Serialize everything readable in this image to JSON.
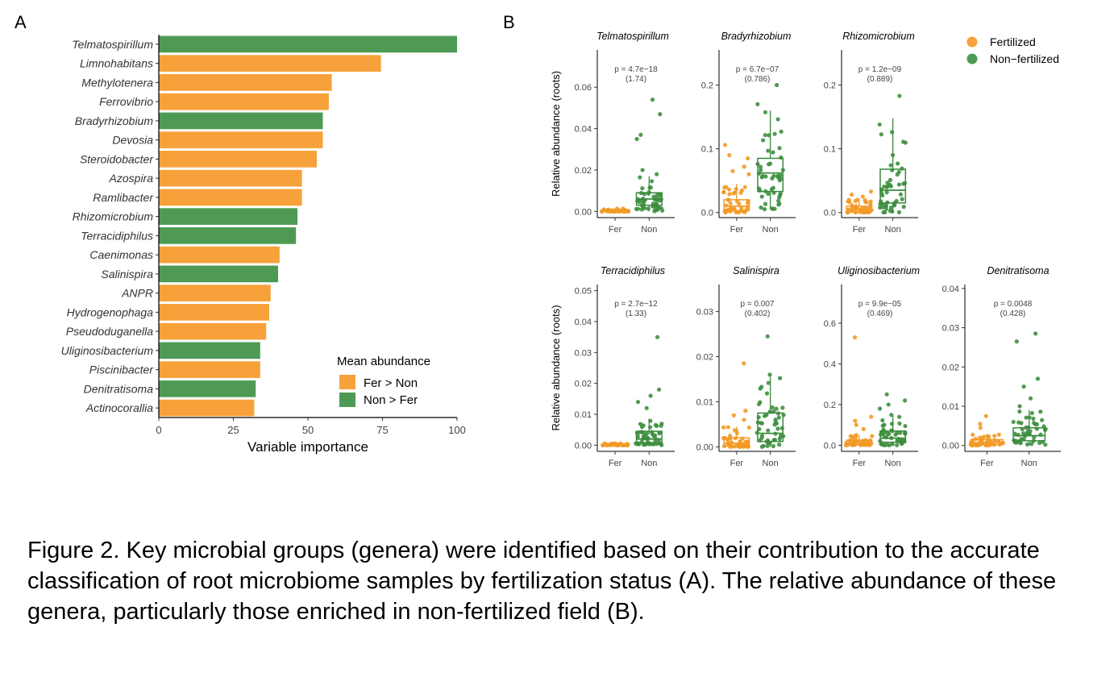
{
  "panel_a_label": "A",
  "panel_b_label": "B",
  "caption": "Figure 2. Key microbial groups (genera) were identified based on their contribution to the accurate classification of root microbiome samples by fertilization status (A). The relative abundance of these genera, particularly those enriched in non-fertilized field (B).",
  "colors": {
    "fer": "#F7A13A",
    "non": "#4E9A55",
    "fer_point": "#F39A27",
    "non_point": "#3E8F3F",
    "box_fer": "#F29A26",
    "box_non": "#3A8A3C"
  },
  "chart_data": [
    {
      "type": "bar",
      "orientation": "horizontal",
      "xlabel": "Variable importance",
      "xlim": [
        0,
        100
      ],
      "xticks": [
        "0",
        "25",
        "50",
        "75",
        "100"
      ],
      "legend": {
        "title": "Mean abundance",
        "position": "bottom-right",
        "entries": [
          "Fer > Non",
          "Non > Fer"
        ]
      },
      "categories": [
        "Telmatospirillum",
        "Limnohabitans",
        "Methylotenera",
        "Ferrovibrio",
        "Bradyrhizobium",
        "Devosia",
        "Steroidobacter",
        "Azospira",
        "Ramlibacter",
        "Rhizomicrobium",
        "Terracidiphilus",
        "Caenimonas",
        "Salinispira",
        "ANPR",
        "Hydrogenophaga",
        "Pseudoduganella",
        "Uliginosibacterium",
        "Piscinibacter",
        "Denitratisoma",
        "Actinocorallia"
      ],
      "values": [
        100,
        74.5,
        58,
        57,
        55,
        55,
        53,
        48,
        48,
        46.5,
        46,
        40.5,
        40,
        37.5,
        37,
        36,
        34,
        34,
        32.5,
        32
      ],
      "groups": [
        "Non > Fer",
        "Fer > Non",
        "Fer > Non",
        "Fer > Non",
        "Non > Fer",
        "Fer > Non",
        "Fer > Non",
        "Fer > Non",
        "Fer > Non",
        "Non > Fer",
        "Non > Fer",
        "Fer > Non",
        "Non > Fer",
        "Fer > Non",
        "Fer > Non",
        "Fer > Non",
        "Non > Fer",
        "Fer > Non",
        "Non > Fer",
        "Fer > Non"
      ]
    },
    {
      "type": "box",
      "ylabel": "Relative abundance (roots)",
      "legend": {
        "position": "top-right",
        "entries": [
          "Fertilized",
          "Non−fertilized"
        ]
      },
      "categories": [
        "Fer",
        "Non"
      ],
      "panels": [
        {
          "title": "Telmatospirillum",
          "p": "p = 4.7e−18",
          "fc": "(1.74)",
          "yticks": [
            0,
            0.02,
            0.04,
            0.06
          ],
          "ytick_labels": [
            "0.00",
            "0.02",
            "0.04",
            "0.06"
          ],
          "ylim": [
            -0.003,
            0.078
          ],
          "fer": {
            "q1": 0.0,
            "median": 0.0003,
            "q3": 0.0006,
            "whisker_low": 0.0,
            "whisker_high": 0.0014,
            "max": 0.0025
          },
          "non": {
            "q1": 0.003,
            "median": 0.006,
            "q3": 0.009,
            "whisker_low": 0.0,
            "whisker_high": 0.017,
            "max": 0.054,
            "outliers": [
              0.054,
              0.047,
              0.037,
              0.035,
              0.02,
              0.018
            ]
          }
        },
        {
          "title": "Bradyrhizobium",
          "p": "p = 6.7e−07",
          "fc": "(0.786)",
          "yticks": [
            0,
            0.1,
            0.2
          ],
          "ytick_labels": [
            "0.0",
            "0.1",
            "0.2"
          ],
          "ylim": [
            -0.008,
            0.255
          ],
          "fer": {
            "q1": 0.003,
            "median": 0.01,
            "q3": 0.02,
            "whisker_low": 0.0,
            "whisker_high": 0.045,
            "max": 0.106,
            "outliers": [
              0.106,
              0.09,
              0.085,
              0.072,
              0.065,
              0.06
            ]
          },
          "non": {
            "q1": 0.033,
            "median": 0.062,
            "q3": 0.085,
            "whisker_low": 0.005,
            "whisker_high": 0.16,
            "max": 0.2,
            "outliers": [
              0.2,
              0.17
            ]
          }
        },
        {
          "title": "Rhizomicrobium",
          "p": "p = 1.2e−09",
          "fc": "(0.889)",
          "yticks": [
            0,
            0.1,
            0.2
          ],
          "ytick_labels": [
            "0.0",
            "0.1",
            "0.2"
          ],
          "ylim": [
            -0.008,
            0.255
          ],
          "fer": {
            "q1": 0.001,
            "median": 0.005,
            "q3": 0.01,
            "whisker_low": 0.0,
            "whisker_high": 0.02,
            "max": 0.033,
            "outliers": [
              0.033,
              0.028,
              0.025
            ]
          },
          "non": {
            "q1": 0.015,
            "median": 0.035,
            "q3": 0.068,
            "whisker_low": 0.0,
            "whisker_high": 0.148,
            "max": 0.183,
            "outliers": [
              0.183
            ]
          }
        },
        {
          "title": "Terracidiphilus",
          "p": "p = 2.7e−12",
          "fc": "(1.33)",
          "yticks": [
            0,
            0.01,
            0.02,
            0.03,
            0.04,
            0.05
          ],
          "ytick_labels": [
            "0.00",
            "0.01",
            "0.02",
            "0.03",
            "0.04",
            "0.05"
          ],
          "ylim": [
            -0.002,
            0.052
          ],
          "fer": {
            "q1": 0.0,
            "median": 0.0001,
            "q3": 0.0003,
            "whisker_low": 0.0,
            "whisker_high": 0.0006,
            "max": 0.0008
          },
          "non": {
            "q1": 0.0008,
            "median": 0.002,
            "q3": 0.0045,
            "whisker_low": 0.0,
            "whisker_high": 0.0085,
            "max": 0.035,
            "outliers": [
              0.035,
              0.018,
              0.016,
              0.014,
              0.012
            ]
          }
        },
        {
          "title": "Salinispira",
          "p": "p = 0.007",
          "fc": "(0.402)",
          "yticks": [
            0,
            0.01,
            0.02,
            0.03
          ],
          "ytick_labels": [
            "0.00",
            "0.01",
            "0.02",
            "0.03"
          ],
          "ylim": [
            -0.001,
            0.036
          ],
          "fer": {
            "q1": 0.0002,
            "median": 0.0008,
            "q3": 0.002,
            "whisker_low": 0.0,
            "whisker_high": 0.0045,
            "max": 0.0185,
            "outliers": [
              0.0185,
              0.008,
              0.007,
              0.006
            ]
          },
          "non": {
            "q1": 0.0012,
            "median": 0.003,
            "q3": 0.0075,
            "whisker_low": 0.0,
            "whisker_high": 0.0155,
            "max": 0.0245,
            "outliers": [
              0.0245,
              0.016
            ]
          }
        },
        {
          "title": "Uliginosibacterium",
          "p": "p = 9.9e−05",
          "fc": "(0.469)",
          "yticks": [
            0,
            0.2,
            0.4,
            0.6
          ],
          "ytick_labels": [
            "0.0",
            "0.2",
            "0.4",
            "0.6"
          ],
          "ylim": [
            -0.03,
            0.79
          ],
          "fer": {
            "q1": 0.003,
            "median": 0.012,
            "q3": 0.025,
            "whisker_low": 0.0,
            "whisker_high": 0.05,
            "max": 0.53,
            "outliers": [
              0.53,
              0.14,
              0.12,
              0.1,
              0.08
            ]
          },
          "non": {
            "q1": 0.015,
            "median": 0.035,
            "q3": 0.07,
            "whisker_low": 0.0,
            "whisker_high": 0.15,
            "max": 0.25,
            "outliers": [
              0.25,
              0.22,
              0.2,
              0.18
            ]
          }
        },
        {
          "title": "Denitratisoma",
          "p": "p = 0.0048",
          "fc": "(0.428)",
          "yticks": [
            0,
            0.01,
            0.02,
            0.03,
            0.04
          ],
          "ytick_labels": [
            "0.00",
            "0.01",
            "0.02",
            "0.03",
            "0.04"
          ],
          "ylim": [
            -0.0015,
            0.041
          ],
          "fer": {
            "q1": 0.0002,
            "median": 0.0007,
            "q3": 0.0015,
            "whisker_low": 0.0,
            "whisker_high": 0.003,
            "max": 0.0075,
            "outliers": [
              0.0075,
              0.0055,
              0.0045
            ]
          },
          "non": {
            "q1": 0.0012,
            "median": 0.0025,
            "q3": 0.0045,
            "whisker_low": 0.0,
            "whisker_high": 0.009,
            "max": 0.0285,
            "outliers": [
              0.0285,
              0.0265,
              0.017,
              0.015,
              0.012,
              0.01
            ]
          }
        }
      ]
    }
  ]
}
